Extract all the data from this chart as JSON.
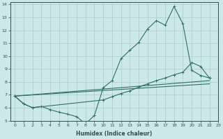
{
  "xlabel": "Humidex (Indice chaleur)",
  "background_color": "#cde8e8",
  "grid_color": "#a8cccc",
  "line_color": "#2e7060",
  "xlim": [
    -0.5,
    23
  ],
  "ylim": [
    5,
    14.2
  ],
  "xticks": [
    0,
    1,
    2,
    3,
    4,
    5,
    6,
    7,
    8,
    9,
    10,
    11,
    12,
    13,
    14,
    15,
    16,
    17,
    18,
    19,
    20,
    21,
    22,
    23
  ],
  "yticks": [
    5,
    6,
    7,
    8,
    9,
    10,
    11,
    12,
    13,
    14
  ],
  "series": [
    {
      "x": [
        0,
        1,
        2,
        3,
        4,
        5,
        6,
        7,
        8,
        9,
        10,
        11,
        12,
        13,
        14,
        15,
        16,
        17,
        18,
        19,
        20,
        21,
        22
      ],
      "y": [
        6.9,
        6.3,
        6.0,
        6.1,
        5.85,
        5.65,
        5.5,
        5.3,
        4.75,
        5.4,
        7.55,
        8.1,
        9.8,
        10.45,
        11.05,
        12.1,
        12.75,
        12.4,
        13.85,
        12.5,
        8.9,
        8.5,
        8.3
      ],
      "marker": "+"
    },
    {
      "x": [
        0,
        1,
        2,
        10,
        11,
        12,
        13,
        14,
        15,
        16,
        17,
        18,
        19,
        20,
        21,
        22
      ],
      "y": [
        6.9,
        6.3,
        6.0,
        6.6,
        6.85,
        7.1,
        7.3,
        7.6,
        7.85,
        8.1,
        8.3,
        8.55,
        8.75,
        9.5,
        9.2,
        8.3
      ],
      "marker": "+"
    },
    {
      "x": [
        0,
        22
      ],
      "y": [
        6.9,
        8.3
      ],
      "marker": null
    },
    {
      "x": [
        0,
        22
      ],
      "y": [
        6.9,
        8.3
      ],
      "marker": null
    }
  ]
}
